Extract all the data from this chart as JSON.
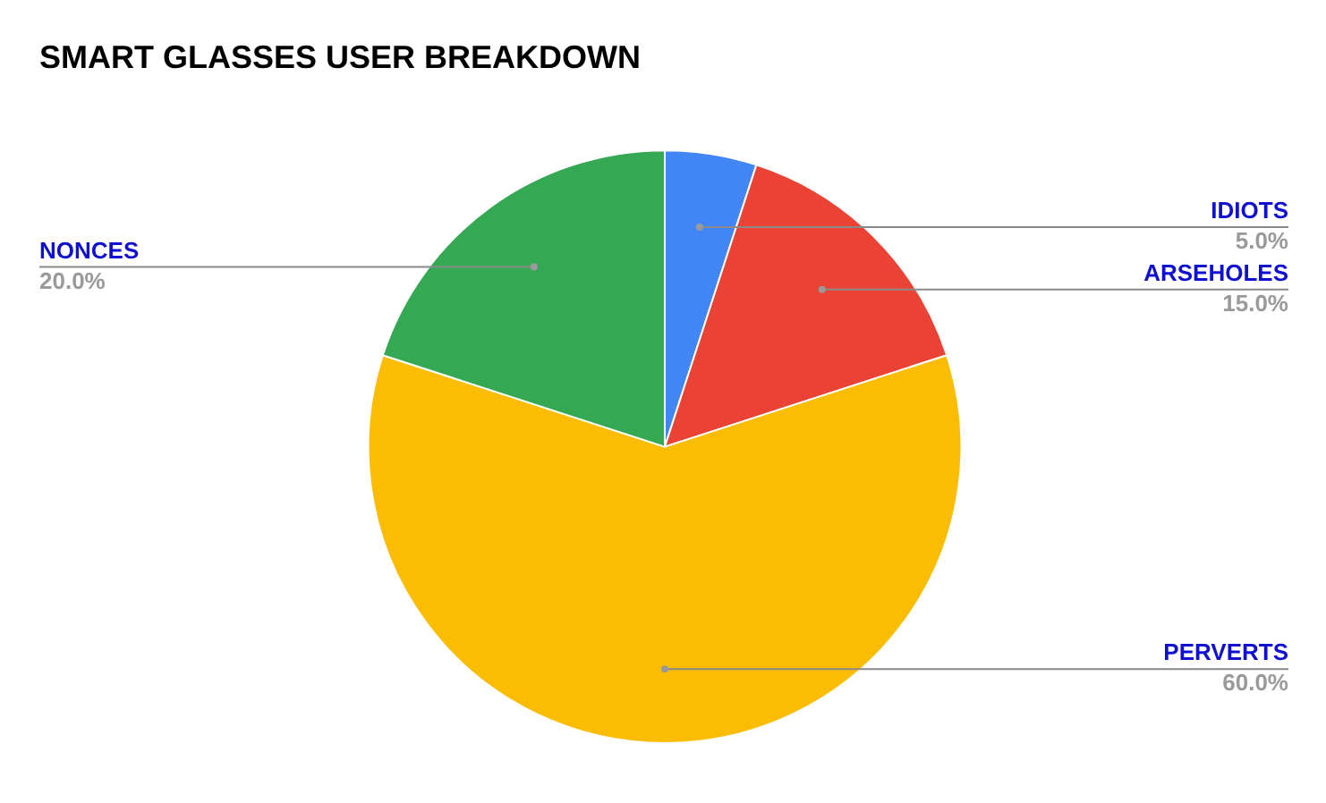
{
  "chart_data": {
    "type": "pie",
    "title": "SMART GLASSES USER BREAKDOWN",
    "categories": [
      "IDIOTS",
      "ARSEHOLES",
      "PERVERTS",
      "NONCES"
    ],
    "values": [
      5,
      15,
      60,
      20
    ],
    "colors": [
      "#4285f4",
      "#ea4335",
      "#fbbc04",
      "#34a853"
    ],
    "value_labels": [
      "5.0%",
      "15.0%",
      "60.0%",
      "20.0%"
    ],
    "legend": false
  }
}
